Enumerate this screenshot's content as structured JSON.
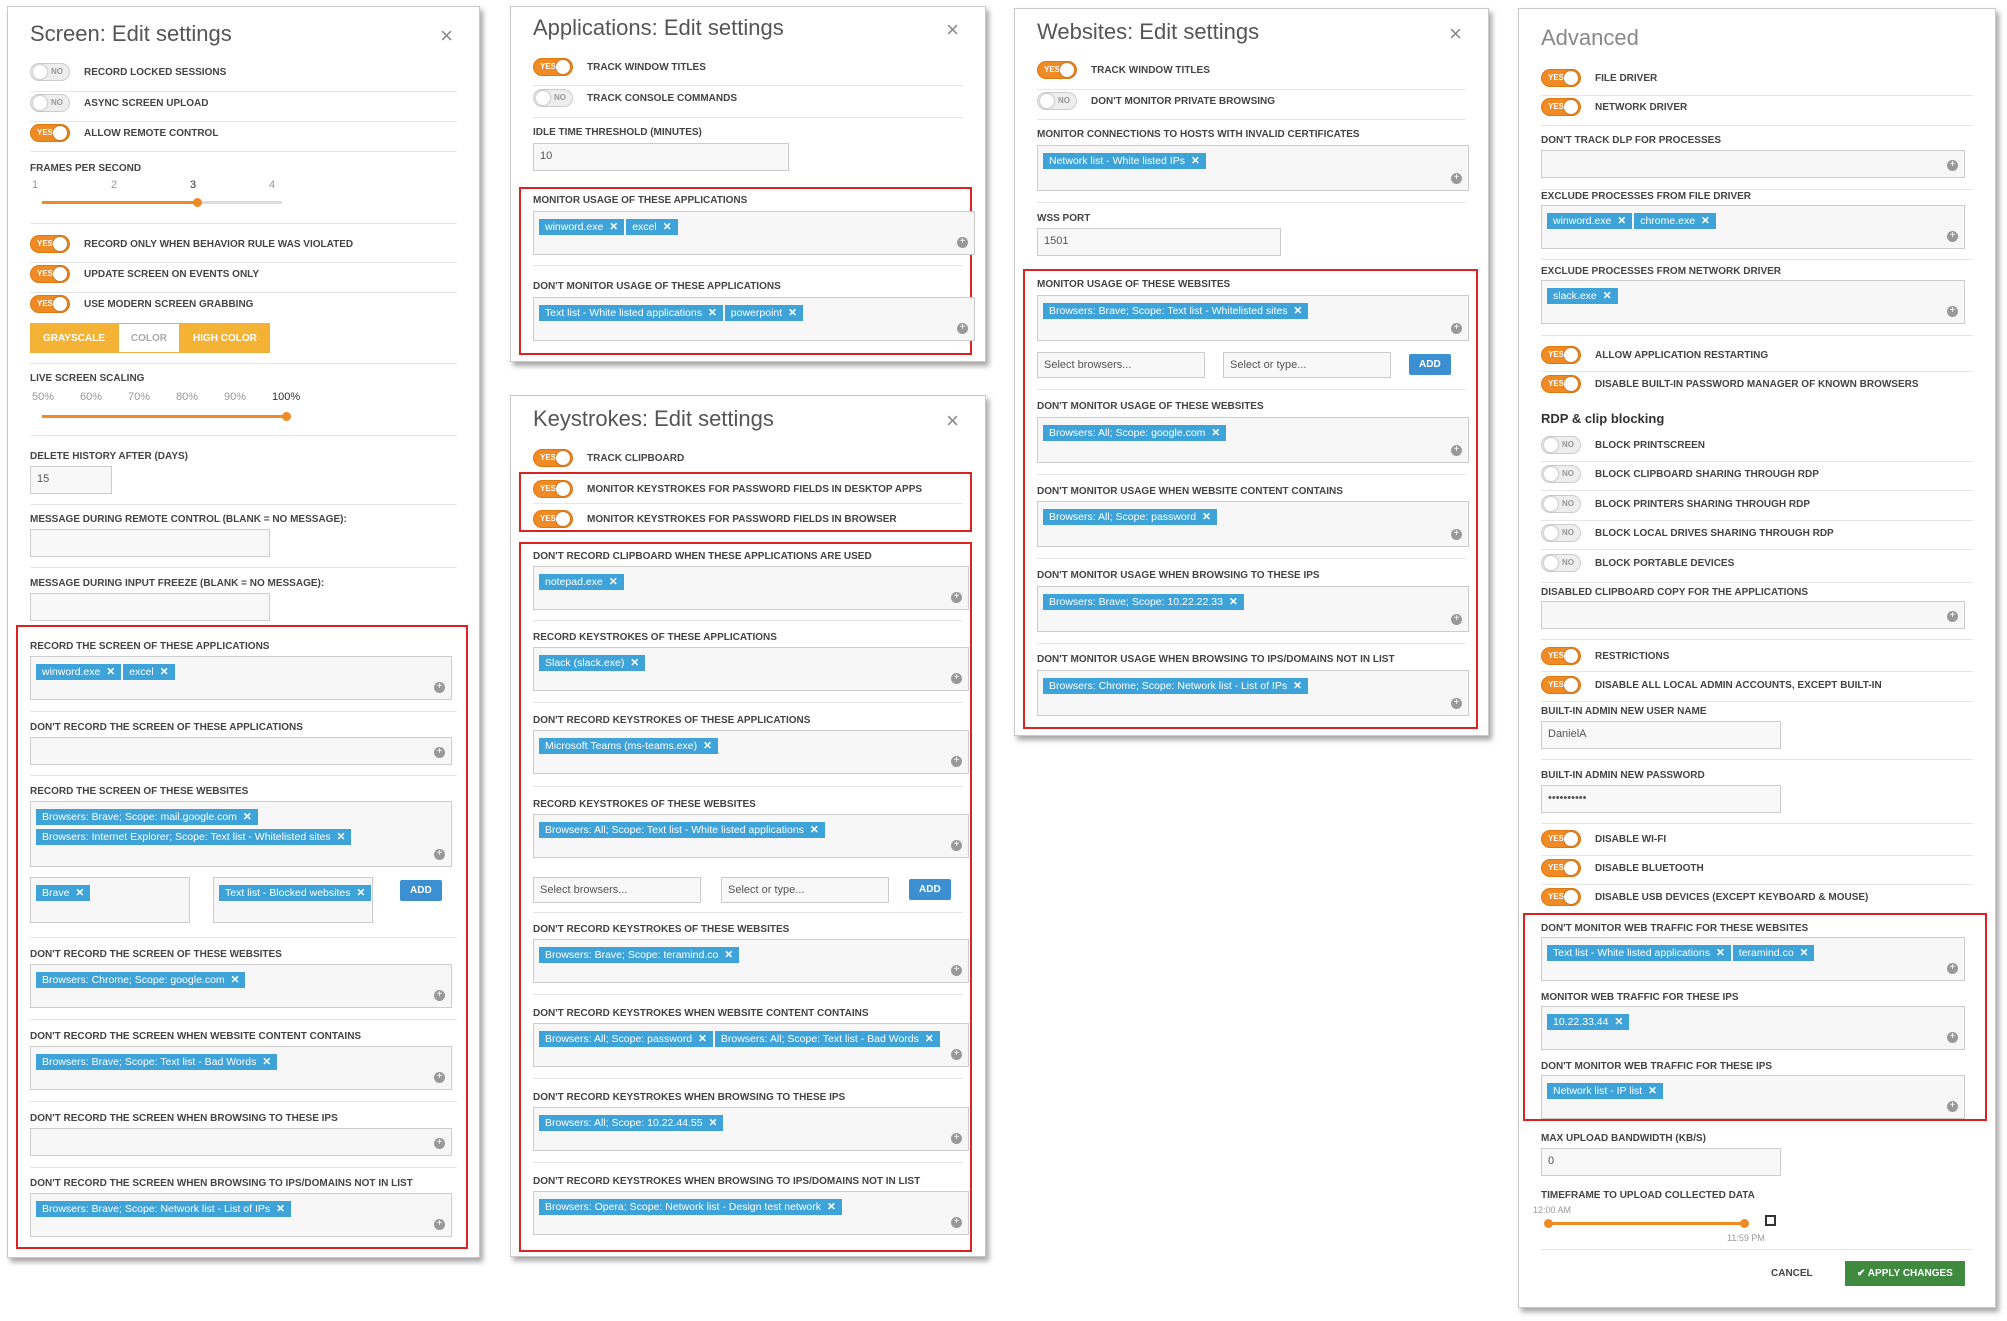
{
  "screen": {
    "title": "Screen: Edit settings",
    "close": "×",
    "t1": "RECORD LOCKED SESSIONS",
    "t2": "ASYNC SCREEN UPLOAD",
    "t3": "ALLOW REMOTE CONTROL",
    "fps_label": "FRAMES PER SECOND",
    "fps_ticks": [
      "1",
      "2",
      "3",
      "4"
    ],
    "t4": "RECORD ONLY WHEN BEHAVIOR RULE WAS VIOLATED",
    "t5": "UPDATE SCREEN ON EVENTS ONLY",
    "t6": "USE MODERN SCREEN GRABBING",
    "modes": [
      "GRAYSCALE",
      "COLOR",
      "HIGH COLOR"
    ],
    "scaling_label": "LIVE SCREEN SCALING",
    "scaling_ticks": [
      "50%",
      "60%",
      "70%",
      "80%",
      "90%",
      "100%"
    ],
    "delete_label": "DELETE HISTORY AFTER (DAYS)",
    "delete_value": "15",
    "msg_remote_label": "MESSAGE DURING REMOTE CONTROL (BLANK = NO MESSAGE):",
    "msg_freeze_label": "MESSAGE DURING INPUT FREEZE (BLANK = NO MESSAGE):",
    "rec_apps_label": "RECORD THE SCREEN OF THESE APPLICATIONS",
    "rec_apps": [
      "winword.exe",
      "excel"
    ],
    "norec_apps_label": "DON'T RECORD THE SCREEN OF THESE APPLICATIONS",
    "rec_sites_label": "RECORD THE SCREEN OF THESE WEBSITES",
    "rec_sites": [
      "Browsers: Brave; Scope: mail.google.com",
      "Browsers: Internet Explorer; Scope: Text list - Whitelisted sites"
    ],
    "brave": "Brave",
    "blocked": "Text list - Blocked websites",
    "add": "ADD",
    "norec_sites_label": "DON'T RECORD THE SCREEN OF THESE WEBSITES",
    "norec_sites": [
      "Browsers: Chrome; Scope: google.com"
    ],
    "norec_content_label": "DON'T RECORD THE SCREEN WHEN WEBSITE CONTENT CONTAINS",
    "norec_content": [
      "Browsers: Brave; Scope: Text list - Bad Words"
    ],
    "norec_ips_label": "DON'T RECORD THE SCREEN WHEN BROWSING TO THESE IPS",
    "norec_notlist_label": "DON'T RECORD THE SCREEN WHEN BROWSING TO IPS/DOMAINS NOT IN LIST",
    "norec_notlist": [
      "Browsers: Brave; Scope: Network list - List of IPs"
    ]
  },
  "apps": {
    "title": "Applications: Edit settings",
    "close": "×",
    "t1": "TRACK WINDOW TITLES",
    "t2": "TRACK CONSOLE COMMANDS",
    "idle_label": "IDLE TIME THRESHOLD (MINUTES)",
    "idle_value": "10",
    "mon_label": "MONITOR USAGE OF THESE APPLICATIONS",
    "mon": [
      "winword.exe",
      "excel"
    ],
    "nomon_label": "DON'T MONITOR USAGE OF THESE APPLICATIONS",
    "nomon": [
      "Text list - White listed applications",
      "powerpoint"
    ]
  },
  "keys": {
    "title": "Keystrokes: Edit settings",
    "close": "×",
    "t1": "TRACK CLIPBOARD",
    "t2": "MONITOR KEYSTROKES FOR PASSWORD FIELDS IN DESKTOP APPS",
    "t3": "MONITOR KEYSTROKES FOR PASSWORD FIELDS IN BROWSER",
    "l1": "DON'T RECORD CLIPBOARD WHEN THESE APPLICATIONS ARE USED",
    "v1": [
      "notepad.exe"
    ],
    "l2": "RECORD KEYSTROKES OF THESE APPLICATIONS",
    "v2": [
      "Slack (slack.exe)"
    ],
    "l3": "DON'T RECORD KEYSTROKES OF THESE APPLICATIONS",
    "v3": [
      "Microsoft Teams (ms-teams.exe)"
    ],
    "l4": "RECORD KEYSTROKES OF THESE WEBSITES",
    "v4": [
      "Browsers: All; Scope: Text list - White listed applications"
    ],
    "sel_browsers": "Select browsers...",
    "sel_type": "Select or type...",
    "add": "ADD",
    "l5": "DON'T RECORD KEYSTROKES OF THESE WEBSITES",
    "v5": [
      "Browsers: Brave; Scope: teramind.co"
    ],
    "l6": "DON'T RECORD KEYSTROKES WHEN WEBSITE CONTENT CONTAINS",
    "v6": [
      "Browsers: All; Scope: password",
      "Browsers: All; Scope: Text list - Bad Words"
    ],
    "l7": "DON'T RECORD KEYSTROKES WHEN BROWSING TO THESE IPS",
    "v7": [
      "Browsers: All; Scope: 10.22.44.55"
    ],
    "l8": "DON'T RECORD KEYSTROKES WHEN BROWSING TO IPS/DOMAINS NOT IN LIST",
    "v8": [
      "Browsers: Opera; Scope: Network list - Design test network"
    ]
  },
  "web": {
    "title": "Websites: Edit settings",
    "close": "×",
    "t1": "TRACK WINDOW TITLES",
    "t2": "DON'T MONITOR PRIVATE BROWSING",
    "cert_label": "MONITOR CONNECTIONS TO HOSTS WITH INVALID CERTIFICATES",
    "cert": [
      "Network list - White listed IPs"
    ],
    "wss_label": "WSS PORT",
    "wss_value": "1501",
    "l1": "MONITOR USAGE OF THESE WEBSITES",
    "v1": [
      "Browsers: Brave; Scope: Text list - Whitelisted sites"
    ],
    "sel_browsers": "Select browsers...",
    "sel_type": "Select or type...",
    "add": "ADD",
    "l2": "DON'T MONITOR USAGE OF THESE WEBSITES",
    "v2": [
      "Browsers: All; Scope: google.com"
    ],
    "l3": "DON'T MONITOR USAGE WHEN WEBSITE CONTENT CONTAINS",
    "v3": [
      "Browsers: All; Scope: password"
    ],
    "l4": "DON'T MONITOR USAGE WHEN BROWSING TO THESE IPS",
    "v4": [
      "Browsers: Brave; Scope: 10.22.22.33"
    ],
    "l5": "DON'T MONITOR USAGE WHEN BROWSING TO IPS/DOMAINS NOT IN LIST",
    "v5": [
      "Browsers: Chrome; Scope: Network list - List of IPs"
    ]
  },
  "adv": {
    "title": "Advanced",
    "t1": "FILE DRIVER",
    "t2": "NETWORK DRIVER",
    "dlp_label": "DON'T TRACK DLP FOR PROCESSES",
    "exfile_label": "EXCLUDE PROCESSES FROM FILE DRIVER",
    "exfile": [
      "winword.exe",
      "chrome.exe"
    ],
    "exnet_label": "EXCLUDE PROCESSES FROM NETWORK DRIVER",
    "exnet": [
      "slack.exe"
    ],
    "t3": "ALLOW APPLICATION RESTARTING",
    "t4": "DISABLE BUILT-IN PASSWORD MANAGER OF KNOWN BROWSERS",
    "rdp_title": "RDP & clip blocking",
    "r1": "BLOCK PRINTSCREEN",
    "r2": "BLOCK CLIPBOARD SHARING THROUGH RDP",
    "r3": "BLOCK PRINTERS SHARING THROUGH RDP",
    "r4": "BLOCK LOCAL DRIVES SHARING THROUGH RDP",
    "r5": "BLOCK PORTABLE DEVICES",
    "clip_label": "DISABLED CLIPBOARD COPY FOR THE APPLICATIONS",
    "t5": "RESTRICTIONS",
    "t6": "DISABLE ALL LOCAL ADMIN ACCOUNTS, EXCEPT BUILT-IN",
    "admin_user_label": "BUILT-IN ADMIN NEW USER NAME",
    "admin_user": "DanielA",
    "admin_pass_label": "BUILT-IN ADMIN NEW PASSWORD",
    "admin_pass": "••••••••••",
    "t7": "DISABLE WI-FI",
    "t8": "DISABLE BLUETOOTH",
    "t9": "DISABLE USB DEVICES (EXCEPT KEYBOARD & MOUSE)",
    "nomonweb_label": "DON'T MONITOR WEB TRAFFIC FOR THESE WEBSITES",
    "nomonweb": [
      "Text list - White listed applications",
      "teramind.co"
    ],
    "monips_label": "MONITOR WEB TRAFFIC FOR THESE IPS",
    "monips": [
      "10.22.33.44"
    ],
    "nomonips_label": "DON'T MONITOR WEB TRAFFIC FOR THESE IPS",
    "nomonips": [
      "Network list - IP list"
    ],
    "bw_label": "MAX UPLOAD BANDWIDTH (KB/S)",
    "bw": "0",
    "tf_label": "TIMEFRAME TO UPLOAD COLLECTED DATA",
    "tf_start": "12:00 AM",
    "tf_end": "11:59 PM",
    "cancel": "CANCEL",
    "apply": "APPLY CHANGES"
  },
  "yes": "YES",
  "no": "NO",
  "x": "✕",
  "plus": "+"
}
